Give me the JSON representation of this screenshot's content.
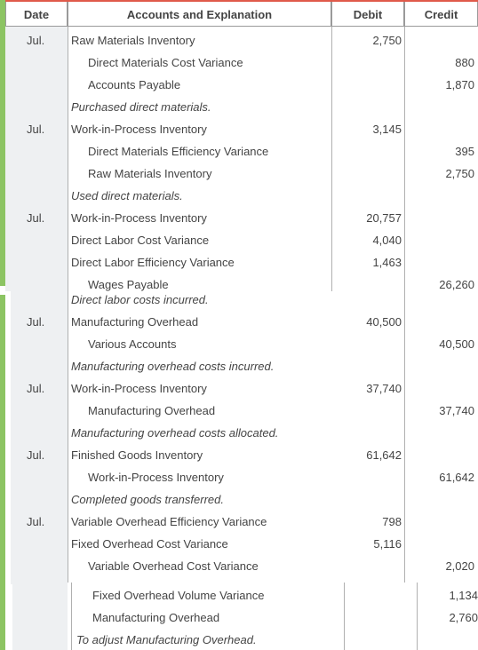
{
  "columns": {
    "date": "Date",
    "accounts": "Accounts and Explanation",
    "debit": "Debit",
    "credit": "Credit"
  },
  "entries": [
    {
      "date": "Jul.",
      "lines": [
        {
          "account": "Raw Materials Inventory",
          "debit": "2,750",
          "credit": ""
        },
        {
          "account": "Direct Materials Cost Variance",
          "debit": "",
          "credit": "880"
        },
        {
          "account": "Accounts Payable",
          "debit": "",
          "credit": "1,870"
        }
      ],
      "explanation": "Purchased direct materials."
    },
    {
      "date": "Jul.",
      "lines": [
        {
          "account": "Work-in-Process Inventory",
          "debit": "3,145",
          "credit": ""
        },
        {
          "account": "Direct Materials Efficiency Variance",
          "debit": "",
          "credit": "395"
        },
        {
          "account": "Raw Materials Inventory",
          "debit": "",
          "credit": "2,750"
        }
      ],
      "explanation": "Used direct materials."
    },
    {
      "date": "Jul.",
      "lines": [
        {
          "account": "Work-in-Process Inventory",
          "debit": "20,757",
          "credit": ""
        },
        {
          "account": "Direct Labor Cost Variance",
          "debit": "4,040",
          "credit": ""
        },
        {
          "account": "Direct Labor Efficiency Variance",
          "debit": "1,463",
          "credit": ""
        },
        {
          "account": "Wages Payable",
          "debit": "",
          "credit": "26,260"
        }
      ],
      "explanation": "Direct labor costs incurred."
    },
    {
      "date": "Jul.",
      "lines": [
        {
          "account": "Manufacturing Overhead",
          "debit": "40,500",
          "credit": ""
        },
        {
          "account": "Various Accounts",
          "debit": "",
          "credit": "40,500"
        }
      ],
      "explanation": "Manufacturing overhead costs incurred."
    },
    {
      "date": "Jul.",
      "lines": [
        {
          "account": "Work-in-Process Inventory",
          "debit": "37,740",
          "credit": ""
        },
        {
          "account": "Manufacturing Overhead",
          "debit": "",
          "credit": "37,740"
        }
      ],
      "explanation": "Manufacturing overhead costs allocated."
    },
    {
      "date": "Jul.",
      "lines": [
        {
          "account": "Finished Goods Inventory",
          "debit": "61,642",
          "credit": ""
        },
        {
          "account": "Work-in-Process Inventory",
          "debit": "",
          "credit": "61,642"
        }
      ],
      "explanation": "Completed goods transferred."
    },
    {
      "date": "Jul.",
      "lines": [
        {
          "account": "Variable Overhead Efficiency Variance",
          "debit": "798",
          "credit": ""
        },
        {
          "account": "Fixed Overhead Cost Variance",
          "debit": "5,116",
          "credit": ""
        },
        {
          "account": "Variable Overhead Cost Variance",
          "debit": "",
          "credit": "2,020"
        },
        {
          "account": "Fixed Overhead Volume Variance",
          "debit": "",
          "credit": "1,134"
        },
        {
          "account": "Manufacturing Overhead",
          "debit": "",
          "credit": "2,760"
        }
      ],
      "explanation": "To adjust Manufacturing Overhead."
    }
  ],
  "colors": {
    "header_top_border": "#e05a4a",
    "date_column_bg": "#eef0f2",
    "left_stripe": "#8cc463",
    "grid_line": "#b0b0b0"
  }
}
